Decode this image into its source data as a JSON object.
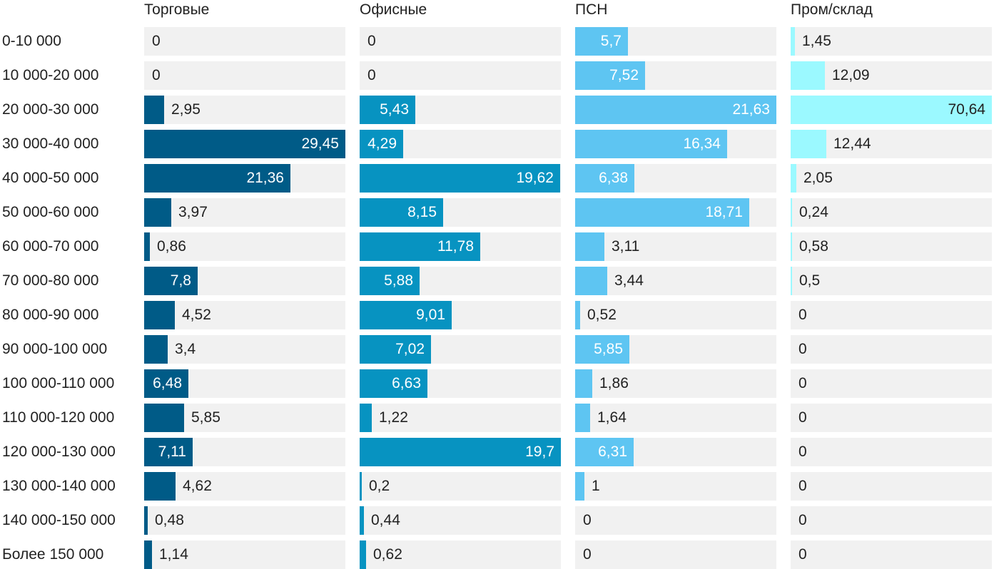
{
  "chart_data": {
    "type": "bar",
    "orientation": "horizontal",
    "layout": "small-multiples",
    "categories": [
      "0-10 000",
      "10 000-20 000",
      "20 000-30 000",
      "30 000-40 000",
      "40 000-50 000",
      "50 000-60 000",
      "60 000-70 000",
      "70 000-80 000",
      "80 000-90 000",
      "90 000-100 000",
      "100 000-110 000",
      "110 000-120 000",
      "120 000-130 000",
      "130 000-140 000",
      "140 000-150 000",
      "Более 150 000"
    ],
    "series": [
      {
        "name": "Торговые",
        "color": "#005b87",
        "max": 29.45,
        "values": [
          0,
          0,
          2.95,
          29.45,
          21.36,
          3.97,
          0.86,
          7.8,
          4.52,
          3.4,
          6.48,
          5.85,
          7.11,
          4.62,
          0.48,
          1.14
        ],
        "labels": [
          "0",
          "0",
          "2,95",
          "29,45",
          "21,36",
          "3,97",
          "0,86",
          "7,8",
          "4,52",
          "3,4",
          "6,48",
          "5,85",
          "7,11",
          "4,62",
          "0,48",
          "1,14"
        ]
      },
      {
        "name": "Офисные",
        "color": "#0793c1",
        "max": 19.7,
        "values": [
          0,
          0,
          5.43,
          4.29,
          19.62,
          8.15,
          11.78,
          5.88,
          9.01,
          7.02,
          6.63,
          1.22,
          19.7,
          0.2,
          0.44,
          0.62
        ],
        "labels": [
          "0",
          "0",
          "5,43",
          "4,29",
          "19,62",
          "8,15",
          "11,78",
          "5,88",
          "9,01",
          "7,02",
          "6,63",
          "1,22",
          "19,7",
          "0,2",
          "0,44",
          "0,62"
        ]
      },
      {
        "name": "ПСН",
        "color": "#5ec5f2",
        "max": 21.63,
        "values": [
          5.7,
          7.52,
          21.63,
          16.34,
          6.38,
          18.71,
          3.11,
          3.44,
          0.52,
          5.85,
          1.86,
          1.64,
          6.31,
          1,
          0,
          0
        ],
        "labels": [
          "5,7",
          "7,52",
          "21,63",
          "16,34",
          "6,38",
          "18,71",
          "3,11",
          "3,44",
          "0,52",
          "5,85",
          "1,86",
          "1,64",
          "6,31",
          "1",
          "0",
          "0"
        ]
      },
      {
        "name": "Пром/склад",
        "color": "#9bf9ff",
        "max": 70.64,
        "values": [
          1.45,
          12.09,
          70.64,
          12.44,
          2.05,
          0.24,
          0.58,
          0.5,
          0,
          0,
          0,
          0,
          0,
          0,
          0,
          0
        ],
        "labels": [
          "1,45",
          "12,09",
          "70,64",
          "12,44",
          "2,05",
          "0,24",
          "0,58",
          "0,5",
          "0",
          "0",
          "0",
          "0",
          "0",
          "0",
          "0",
          "0"
        ]
      }
    ]
  }
}
